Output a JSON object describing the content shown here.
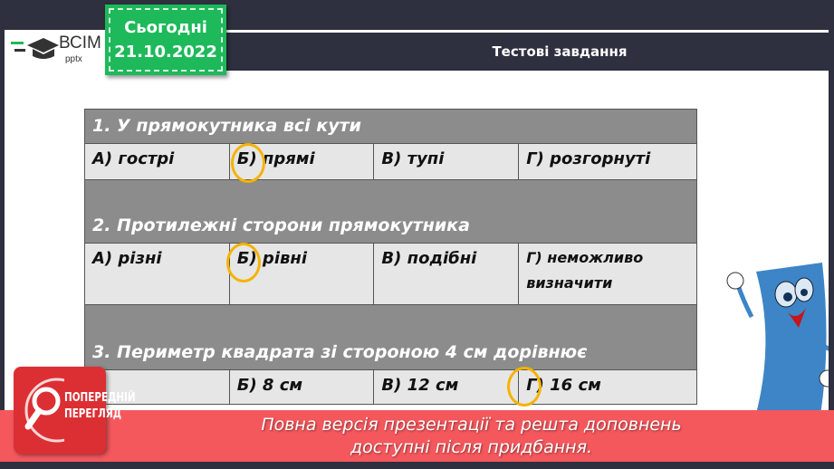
{
  "logo": {
    "brand": "ВСІМ",
    "sub": "pptx"
  },
  "date_badge": {
    "label": "Сьогодні",
    "date": "21.10.2022"
  },
  "header": {
    "title": "Тестові завдання"
  },
  "questions": [
    {
      "text": "1. У прямокутника всі кути",
      "answers": [
        "А) гострі",
        "Б) прямі",
        "В) тупі",
        "Г) розгорнуті"
      ],
      "circled": 1
    },
    {
      "text": "2. Протилежні сторони прямокутника",
      "answers": [
        "А) різні",
        "Б) рівні",
        "В) подібні",
        "Г) неможливо визначити"
      ],
      "circled": 1
    },
    {
      "text": "3. Периметр квадрата зі стороною 4 см дорівнює",
      "answers": [
        "",
        "Б) 8 см",
        "В) 12 см",
        "Г) 16 см"
      ],
      "circled": 3
    }
  ],
  "preview": {
    "line1": "ПОПЕРЕДНІЙ",
    "line2": "ПЕРЕГЛЯД"
  },
  "banner": {
    "line1": "Повна версія презентації та решта доповнень",
    "line2": "доступні після придбання."
  },
  "colors": {
    "accent_green": "#1db95a",
    "circle": "#f5b300",
    "banner_red": "#f4585d"
  }
}
